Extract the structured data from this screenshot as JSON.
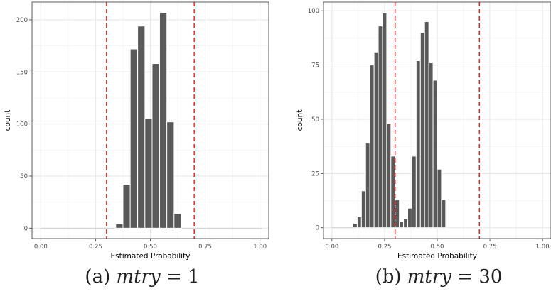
{
  "chart_data": [
    {
      "type": "bar",
      "panel_label": "(a)",
      "caption_var": "mtry",
      "caption_eq": "= 1",
      "xlabel": "Estimated Probability",
      "ylabel": "count",
      "xlim": [
        -0.04,
        1.04
      ],
      "ylim": [
        -10,
        217
      ],
      "x_ticks": [
        0.0,
        0.25,
        0.5,
        0.75,
        1.0
      ],
      "x_tick_labels": [
        "0.00",
        "0.25",
        "0.50",
        "0.75",
        "1.00"
      ],
      "y_ticks": [
        0,
        50,
        100,
        150,
        200
      ],
      "y_tick_labels": [
        "0",
        "50",
        "100",
        "150",
        "200"
      ],
      "bin_width": 0.0333,
      "bins": [
        {
          "x": 0.0,
          "count": 0
        },
        {
          "x": 0.033,
          "count": 0
        },
        {
          "x": 0.067,
          "count": 0
        },
        {
          "x": 0.1,
          "count": 0
        },
        {
          "x": 0.133,
          "count": 0
        },
        {
          "x": 0.167,
          "count": 0
        },
        {
          "x": 0.2,
          "count": 0
        },
        {
          "x": 0.233,
          "count": 0
        },
        {
          "x": 0.267,
          "count": 0
        },
        {
          "x": 0.3,
          "count": 0
        },
        {
          "x": 0.333,
          "count": 0
        },
        {
          "x": 0.342,
          "count": 4
        },
        {
          "x": 0.375,
          "count": 42
        },
        {
          "x": 0.408,
          "count": 172
        },
        {
          "x": 0.442,
          "count": 194
        },
        {
          "x": 0.475,
          "count": 105
        },
        {
          "x": 0.508,
          "count": 158
        },
        {
          "x": 0.542,
          "count": 207
        },
        {
          "x": 0.575,
          "count": 102
        },
        {
          "x": 0.608,
          "count": 14
        },
        {
          "x": 0.642,
          "count": 0
        },
        {
          "x": 0.675,
          "count": 0
        },
        {
          "x": 0.708,
          "count": 0
        },
        {
          "x": 0.742,
          "count": 0
        },
        {
          "x": 0.775,
          "count": 0
        },
        {
          "x": 0.808,
          "count": 0
        },
        {
          "x": 0.842,
          "count": 0
        },
        {
          "x": 0.875,
          "count": 0
        },
        {
          "x": 0.908,
          "count": 0
        },
        {
          "x": 0.942,
          "count": 0
        },
        {
          "x": 0.975,
          "count": 0
        }
      ],
      "vlines": [
        0.3,
        0.7
      ],
      "bar_color": "#595959",
      "vline_color": "#e41a1c",
      "grid": true
    },
    {
      "type": "bar",
      "panel_label": "(b)",
      "caption_var": "mtry",
      "caption_eq": "= 30",
      "xlabel": "Estimated Probability",
      "ylabel": "count",
      "xlim": [
        -0.04,
        1.04
      ],
      "ylim": [
        -5,
        104
      ],
      "x_ticks": [
        0.0,
        0.25,
        0.5,
        0.75,
        1.0
      ],
      "x_tick_labels": [
        "0.00",
        "0.25",
        "0.50",
        "0.75",
        "1.00"
      ],
      "y_ticks": [
        0,
        25,
        50,
        75,
        100
      ],
      "y_tick_labels": [
        "0",
        "25",
        "50",
        "75",
        "100"
      ],
      "bin_width": 0.02,
      "bins": [
        {
          "x": 0.0,
          "count": 0
        },
        {
          "x": 0.02,
          "count": 0
        },
        {
          "x": 0.04,
          "count": 0
        },
        {
          "x": 0.06,
          "count": 0
        },
        {
          "x": 0.08,
          "count": 0
        },
        {
          "x": 0.1,
          "count": 2
        },
        {
          "x": 0.12,
          "count": 5
        },
        {
          "x": 0.14,
          "count": 17
        },
        {
          "x": 0.16,
          "count": 39
        },
        {
          "x": 0.18,
          "count": 75
        },
        {
          "x": 0.2,
          "count": 81
        },
        {
          "x": 0.22,
          "count": 93
        },
        {
          "x": 0.24,
          "count": 99
        },
        {
          "x": 0.26,
          "count": 48
        },
        {
          "x": 0.28,
          "count": 33
        },
        {
          "x": 0.3,
          "count": 13
        },
        {
          "x": 0.32,
          "count": 3
        },
        {
          "x": 0.34,
          "count": 4
        },
        {
          "x": 0.36,
          "count": 9
        },
        {
          "x": 0.38,
          "count": 33
        },
        {
          "x": 0.4,
          "count": 77
        },
        {
          "x": 0.42,
          "count": 90
        },
        {
          "x": 0.44,
          "count": 95
        },
        {
          "x": 0.46,
          "count": 76
        },
        {
          "x": 0.48,
          "count": 68
        },
        {
          "x": 0.5,
          "count": 27
        },
        {
          "x": 0.52,
          "count": 13
        }
      ],
      "vlines": [
        0.3,
        0.7
      ],
      "bar_color": "#595959",
      "vline_color": "#e41a1c",
      "grid": true
    }
  ]
}
